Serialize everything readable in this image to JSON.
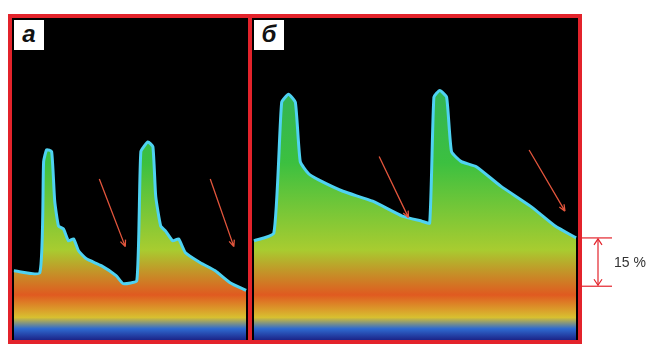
{
  "chart_data": [
    {
      "type": "line",
      "title": "а",
      "color": "#4fd2f2",
      "tick_labels": false,
      "xlim": [
        0,
        100
      ],
      "ylim": [
        0,
        100
      ],
      "x": [
        0.8,
        11.8,
        13.4,
        14.7,
        16.8,
        18.1,
        19.7,
        21.8,
        23.9,
        26.1,
        28.2,
        31.5,
        37.8,
        44.1,
        47.1,
        52.9,
        54.6,
        57.6,
        59.7,
        60.9,
        63,
        65.1,
        68.1,
        70.6,
        73.5,
        79.8,
        86.1,
        92.4,
        99.2
      ],
      "values": [
        21.5,
        20.9,
        55.4,
        59.1,
        58.5,
        43.1,
        35.4,
        34.5,
        30.8,
        31.4,
        27.7,
        25.2,
        23.1,
        20,
        17.5,
        18.5,
        58.5,
        61.5,
        60,
        44.6,
        35.4,
        33.8,
        30.8,
        31.4,
        27.1,
        24,
        21.5,
        17.8,
        15.4
      ]
    },
    {
      "type": "line",
      "title": "б",
      "color": "#4fd2f2",
      "tick_labels": false,
      "xlim": [
        0,
        100
      ],
      "ylim": [
        0,
        100
      ],
      "x": [
        0.6,
        6.7,
        9.1,
        11.2,
        13.3,
        14.8,
        17.3,
        20.3,
        27.9,
        37,
        46.1,
        52.1,
        54.5,
        55.8,
        57.6,
        59.7,
        61.2,
        64.2,
        68.8,
        76.4,
        85.5,
        93,
        99.4
      ],
      "values": [
        30.8,
        33.2,
        73.8,
        76.3,
        73.8,
        55.4,
        51.7,
        49.8,
        46.2,
        43.1,
        38.5,
        36.9,
        36.3,
        75.4,
        77.5,
        75.4,
        58.5,
        55.4,
        53.8,
        47.7,
        41.5,
        35.4,
        31.7
      ],
      "annotations": [
        {
          "value": 15,
          "label": "15 %"
        }
      ]
    }
  ]
}
